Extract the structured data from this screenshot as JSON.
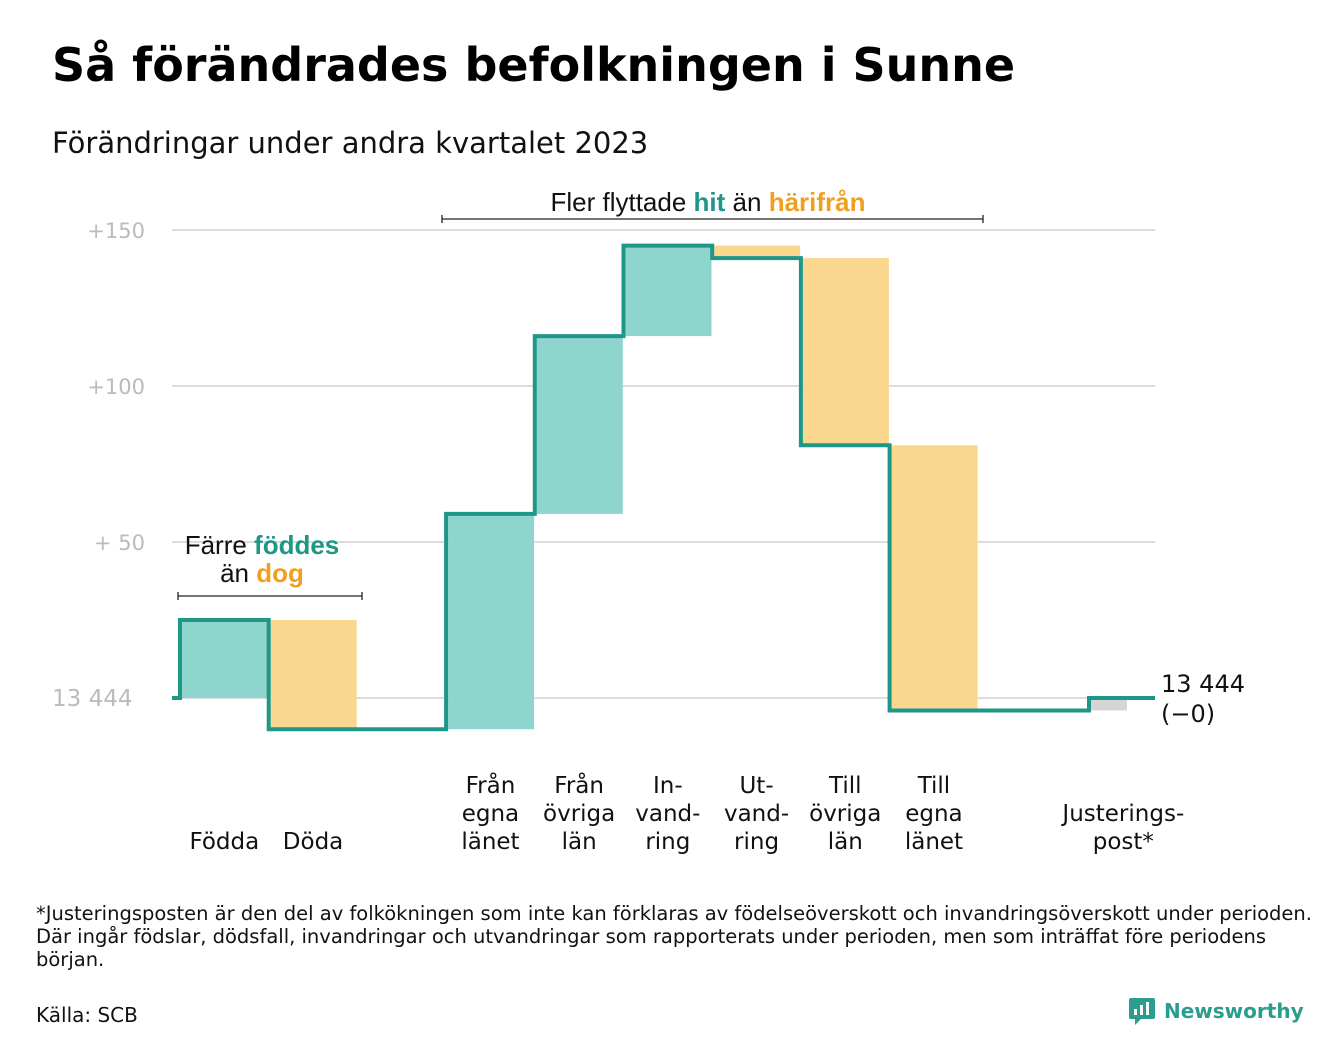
{
  "title": "Så förändrades befolkningen i Sunne",
  "subtitle": "Förändringar under andra kvartalet 2023",
  "colors": {
    "inflow": "#8ed5ce",
    "outflow": "#f9d78f",
    "adjustment": "#d5d5d5",
    "line": "#1e9688",
    "teal_text": "#1e9688",
    "orange_text": "#f0a020",
    "grid": "#dddddd",
    "tick": "#bbbbbb"
  },
  "chart_data": {
    "type": "waterfall",
    "title": "",
    "ylabel": "",
    "start_value": 13444,
    "ylim": [
      -13,
      155
    ],
    "y_ticks": [
      {
        "value": 150,
        "label": "+150"
      },
      {
        "value": 100,
        "label": "+100"
      },
      {
        "value": 50,
        "label": "+  50"
      },
      {
        "value": 0,
        "label": "13  444"
      }
    ],
    "steps": [
      {
        "lines": [
          "Födda"
        ],
        "delta": 25,
        "kind": "inflow"
      },
      {
        "lines": [
          "Döda"
        ],
        "delta": -35,
        "kind": "outflow"
      },
      {
        "lines": [],
        "delta": 0,
        "kind": "none"
      },
      {
        "lines": [
          "Från",
          "egna",
          "länet"
        ],
        "delta": 69,
        "kind": "inflow"
      },
      {
        "lines": [
          "Från",
          "övriga",
          "län"
        ],
        "delta": 57,
        "kind": "inflow"
      },
      {
        "lines": [
          "In-",
          "vand-",
          "ring"
        ],
        "delta": 29,
        "kind": "inflow"
      },
      {
        "lines": [
          "Ut-",
          "vand-",
          "ring"
        ],
        "delta": -4,
        "kind": "outflow"
      },
      {
        "lines": [
          "Till",
          "övriga",
          "län"
        ],
        "delta": -60,
        "kind": "outflow"
      },
      {
        "lines": [
          "Till",
          "egna",
          "länet"
        ],
        "delta": -85,
        "kind": "outflow"
      },
      {
        "lines": [],
        "delta": 0,
        "kind": "none"
      },
      {
        "lines": [
          "Justerings-",
          "post*"
        ],
        "delta": 4,
        "kind": "adjustment"
      }
    ],
    "end_label": [
      "13 444",
      "(−0)"
    ],
    "annotations": {
      "births": {
        "pre1": "Färre ",
        "bold1": "föddes",
        "pre2": "än ",
        "bold2": "dog"
      },
      "migration": {
        "pre1": "Fler flyttade ",
        "bold1": "hit",
        "pre2": " än ",
        "bold2": "härifrån"
      }
    }
  },
  "footnote": "*Justeringsposten är den del av folkökningen som inte kan förklaras av födelseöverskott och invandringsöverskott under perioden. Där ingår födslar, dödsfall, invandringar och utvandringar som rapporterats under perioden, men som inträffat före periodens början.",
  "source": "Källa: SCB",
  "brand": {
    "name": "Newsworthy",
    "icon": "newsworthy-logo-icon"
  }
}
